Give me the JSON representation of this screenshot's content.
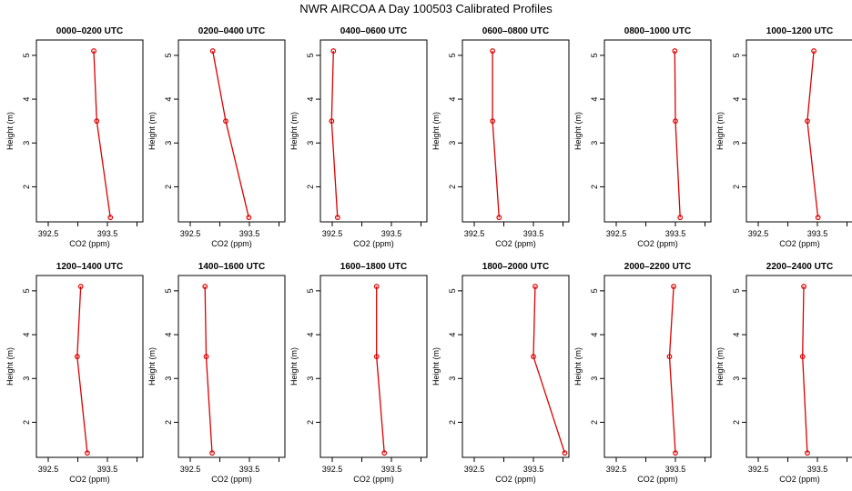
{
  "title": "NWR AIRCOA A  Day 100503  Calibrated Profiles",
  "colors": {
    "series": "#dd0000",
    "axis": "#000000"
  },
  "chart_data": {
    "type": "line",
    "orientation": "vertical-profile",
    "xlabel": "CO2 (ppm)",
    "ylabel": "Height (m)",
    "xlim": [
      392.3,
      394.1
    ],
    "ylim": [
      1.2,
      5.35
    ],
    "xticks": [
      392.5,
      393.0,
      393.5,
      394.0
    ],
    "xtick_labels": [
      "392.5",
      "",
      "393.5",
      ""
    ],
    "yticks": [
      2,
      3,
      4,
      5
    ],
    "ytick_labels": [
      "2",
      "3",
      "4",
      "5"
    ],
    "heights": [
      5.1,
      3.5,
      1.3
    ],
    "panels": [
      {
        "title": "0000–0200 UTC",
        "co2": [
          393.27,
          393.32,
          393.55
        ]
      },
      {
        "title": "0200–0400 UTC",
        "co2": [
          392.88,
          393.1,
          393.49
        ]
      },
      {
        "title": "0400–0600 UTC",
        "co2": [
          392.52,
          392.49,
          392.59
        ]
      },
      {
        "title": "0600–0800 UTC",
        "co2": [
          392.81,
          392.81,
          392.92
        ]
      },
      {
        "title": "0800–1000 UTC",
        "co2": [
          393.49,
          393.5,
          393.58
        ]
      },
      {
        "title": "1000–1200 UTC",
        "co2": [
          393.44,
          393.33,
          393.51
        ]
      },
      {
        "title": "1200–1400 UTC",
        "co2": [
          393.05,
          392.99,
          393.16
        ]
      },
      {
        "title": "1400–1600 UTC",
        "co2": [
          392.75,
          392.77,
          392.87
        ]
      },
      {
        "title": "1600–1800 UTC",
        "co2": [
          393.25,
          393.25,
          393.38
        ]
      },
      {
        "title": "1800–2000 UTC",
        "co2": [
          393.53,
          393.5,
          394.03
        ]
      },
      {
        "title": "2000–2200 UTC",
        "co2": [
          393.47,
          393.4,
          393.5
        ]
      },
      {
        "title": "2200–2400 UTC",
        "co2": [
          393.27,
          393.25,
          393.33
        ]
      }
    ]
  }
}
